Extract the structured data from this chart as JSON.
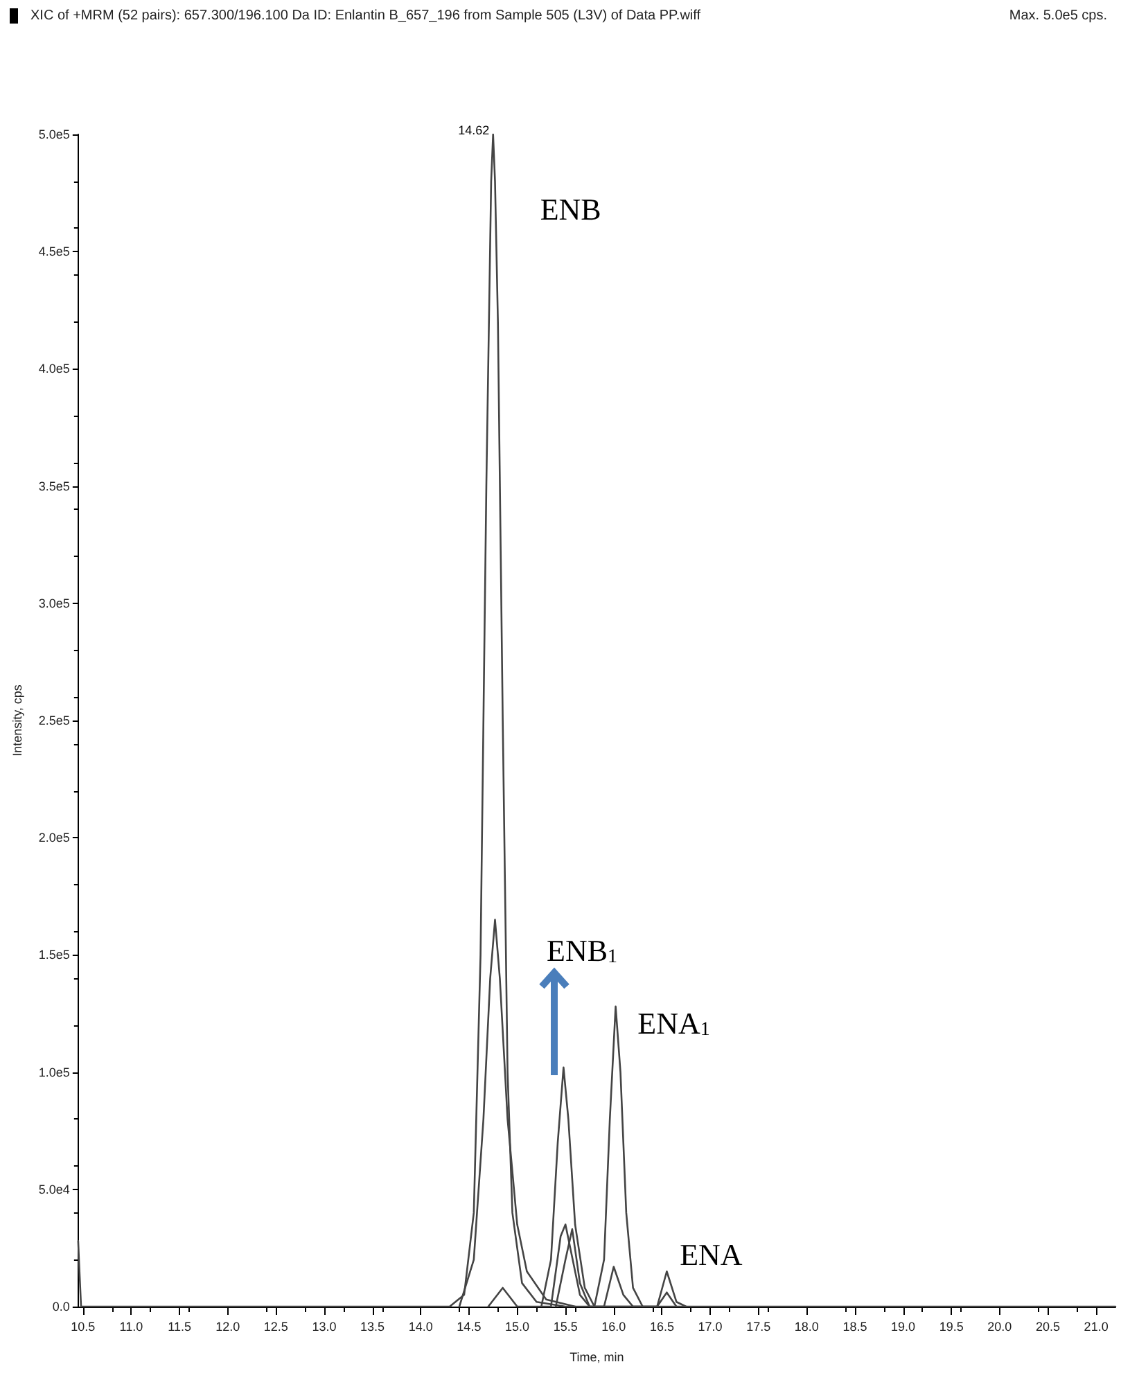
{
  "chart_data": {
    "type": "line",
    "title": "XIC of +MRM (52 pairs): 657.300/196.100 Da ID: Enlantin B_657_196 from Sample 505 (L3V) of Data PP.wiff",
    "xlabel": "Time, min",
    "ylabel": "Intensity, cps",
    "annotations": [
      "Max. 5.0e5 cps.",
      {
        "text": "14.62",
        "x": 14.75,
        "y": 500000
      },
      {
        "text": "ENB",
        "x": 14.75,
        "y": 500000
      },
      "ENB$_{1}$",
      {
        "text": "ENA$_{1}$",
        "x": 16.02,
        "y": 128000
      },
      {
        "text": "ENA",
        "x": 16.55,
        "y": 15000
      }
    ],
    "xlim": [
      10.45,
      21.2
    ],
    "xticks": [
      10.5,
      {
        "value": 11,
        "label": "11.0"
      },
      11.5,
      {
        "value": 12,
        "label": "12.0"
      },
      12.5,
      {
        "value": 13,
        "label": "13.0"
      },
      13.5,
      {
        "value": 14,
        "label": "14.0"
      },
      14.5,
      {
        "value": 15,
        "label": "15.0"
      },
      15.5,
      {
        "value": 16,
        "label": "16.0"
      },
      16.5,
      {
        "value": 17,
        "label": "17.0"
      },
      17.5,
      {
        "value": 18,
        "label": "18.0"
      },
      18.5,
      {
        "value": 19,
        "label": "19.0"
      },
      19.5,
      {
        "value": 20,
        "label": "20.0"
      },
      20.5,
      {
        "value": 21,
        "label": "21.0"
      }
    ],
    "ylim": [
      0,
      500000
    ],
    "yticks": [
      {
        "value": 0,
        "label": "0.0"
      },
      {
        "value": 50000,
        "label": "5.0e4"
      },
      {
        "value": 100000,
        "label": "1.0e5"
      },
      {
        "value": 150000,
        "label": "1.5e5"
      },
      {
        "value": 200000,
        "label": "2.0e5"
      },
      {
        "value": 250000,
        "label": "2.5e5"
      },
      {
        "value": 300000,
        "label": "3.0e5"
      },
      {
        "value": 350000,
        "label": "3.5e5"
      },
      {
        "value": 400000,
        "label": "4.0e5"
      },
      {
        "value": 450000,
        "label": "4.5e5"
      },
      {
        "value": 500000,
        "label": "5.0e5"
      }
    ],
    "grid": false,
    "marker": "none",
    "line_style": "solid",
    "series": [
      {
        "color": "#444444",
        "x": [
          10.45,
          10.46,
          10.48,
          14.3,
          14.45,
          14.55,
          14.62,
          14.68,
          14.73,
          14.75,
          14.77,
          14.8,
          14.85,
          14.9,
          14.95,
          15.05,
          15.2,
          15.5,
          21.2
        ],
        "values": [
          28000,
          18000,
          0,
          0,
          5000,
          40000,
          150000,
          350000,
          480000,
          500000,
          480000,
          420000,
          250000,
          100000,
          40000,
          10000,
          2000,
          0,
          0
        ]
      },
      {
        "color": "#444444",
        "x": [
          14.4,
          14.55,
          14.65,
          14.72,
          14.77,
          14.82,
          14.9,
          15.0,
          15.1,
          15.3,
          15.6
        ],
        "values": [
          0,
          20000,
          80000,
          140000,
          165000,
          140000,
          80000,
          35000,
          15000,
          3000,
          0
        ]
      },
      {
        "color": "#444444",
        "x": [
          15.25,
          15.35,
          15.42,
          15.48,
          15.53,
          15.6,
          15.7,
          15.8
        ],
        "values": [
          0,
          20000,
          70000,
          102000,
          80000,
          35000,
          8000,
          0
        ]
      },
      {
        "color": "#444444",
        "x": [
          15.8,
          15.9,
          15.96,
          16.02,
          16.07,
          16.13,
          16.2,
          16.3
        ],
        "values": [
          0,
          20000,
          80000,
          128000,
          100000,
          40000,
          8000,
          0
        ]
      },
      {
        "color": "#444444",
        "x": [
          14.7,
          14.85,
          15.0,
          15.35,
          15.45,
          15.5,
          15.55,
          15.65,
          15.75,
          15.9,
          16.0,
          16.1,
          16.2,
          16.45,
          16.55,
          16.65,
          16.75
        ],
        "values": [
          0,
          8000,
          0,
          0,
          30000,
          35000,
          25000,
          5000,
          0,
          0,
          17000,
          5000,
          0,
          0,
          15000,
          2000,
          0
        ]
      },
      {
        "color": "#444444",
        "x": [
          15.4,
          15.5,
          15.57,
          15.65,
          15.75,
          16.45,
          16.55,
          16.65
        ],
        "values": [
          0,
          20000,
          33000,
          10000,
          0,
          0,
          6000,
          0
        ]
      }
    ]
  }
}
